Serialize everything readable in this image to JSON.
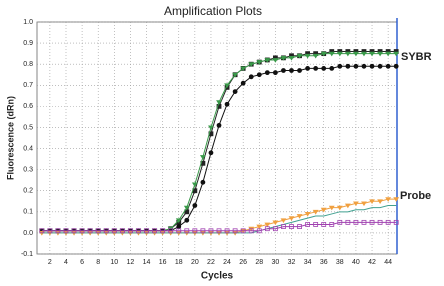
{
  "chart_data": {
    "type": "line",
    "title": "Amplification Plots",
    "x_label": "Cycles",
    "y_label": "Fluorescence (dRn)",
    "x": [
      1,
      2,
      3,
      4,
      5,
      6,
      7,
      8,
      9,
      10,
      11,
      12,
      13,
      14,
      15,
      16,
      17,
      18,
      19,
      20,
      21,
      22,
      23,
      24,
      25,
      26,
      27,
      28,
      29,
      30,
      31,
      32,
      33,
      34,
      35,
      36,
      37,
      38,
      39,
      40,
      41,
      42,
      43,
      44,
      45
    ],
    "xlim": [
      0.4,
      45.1
    ],
    "xticks": [
      2,
      4,
      6,
      8,
      10,
      12,
      14,
      16,
      18,
      20,
      22,
      24,
      26,
      28,
      30,
      32,
      34,
      36,
      38,
      40,
      42,
      44
    ],
    "ylim": [
      -0.1,
      1.0
    ],
    "yticks": [
      -0.1,
      {
        "value": 0,
        "label": "0.0"
      },
      0.1,
      0.2,
      0.3,
      0.4,
      0.5,
      0.6,
      0.7,
      0.8,
      0.9,
      {
        "value": 1,
        "label": "1.0"
      }
    ],
    "grid": true,
    "annotations": [
      "SYBR",
      "Probe"
    ],
    "series": [
      {
        "color": "#222222",
        "marker": "square",
        "values": [
          0.01,
          0.01,
          0.01,
          0.01,
          0.01,
          0.01,
          0.01,
          0.01,
          0.01,
          0.01,
          0.01,
          0.01,
          0.01,
          0.01,
          0.01,
          0.01,
          0.02,
          0.05,
          0.1,
          0.2,
          0.33,
          0.47,
          0.6,
          0.69,
          0.75,
          0.78,
          0.8,
          0.81,
          0.82,
          0.83,
          0.83,
          0.84,
          0.84,
          0.85,
          0.85,
          0.85,
          0.86,
          0.86,
          0.86,
          0.86,
          0.86,
          0.86,
          0.86,
          0.86,
          0.86
        ]
      },
      {
        "color": "#3a9a4a",
        "marker": "triangle",
        "values": [
          0.01,
          0.01,
          0.01,
          0.01,
          0.01,
          0.01,
          0.01,
          0.01,
          0.01,
          0.01,
          0.01,
          0.01,
          0.01,
          0.01,
          0.01,
          0.01,
          0.02,
          0.06,
          0.12,
          0.23,
          0.36,
          0.5,
          0.62,
          0.7,
          0.75,
          0.78,
          0.8,
          0.81,
          0.82,
          0.82,
          0.83,
          0.83,
          0.84,
          0.84,
          0.84,
          0.85,
          0.85,
          0.85,
          0.85,
          0.85,
          0.85,
          0.85,
          0.85,
          0.85,
          0.85
        ]
      },
      {
        "color": "#111111",
        "marker": "circle",
        "values": [
          0.01,
          0.01,
          0.01,
          0.01,
          0.01,
          0.01,
          0.01,
          0.01,
          0.01,
          0.01,
          0.01,
          0.01,
          0.01,
          0.01,
          0.01,
          0.01,
          0.01,
          0.03,
          0.06,
          0.13,
          0.24,
          0.38,
          0.51,
          0.61,
          0.67,
          0.71,
          0.74,
          0.75,
          0.76,
          0.76,
          0.77,
          0.77,
          0.77,
          0.78,
          0.78,
          0.78,
          0.78,
          0.79,
          0.79,
          0.79,
          0.79,
          0.79,
          0.79,
          0.79,
          0.79
        ]
      },
      {
        "color": "#f0a040",
        "marker": "triangle",
        "values": [
          0,
          0,
          0,
          0,
          0,
          0,
          0,
          0,
          0,
          0,
          0,
          0,
          0,
          0,
          0,
          0,
          0,
          0,
          0,
          0,
          0,
          0,
          0,
          0,
          0,
          0.01,
          0.02,
          0.03,
          0.04,
          0.05,
          0.06,
          0.07,
          0.08,
          0.09,
          0.1,
          0.11,
          0.12,
          0.12,
          0.13,
          0.14,
          0.14,
          0.15,
          0.15,
          0.16,
          0.16
        ]
      },
      {
        "color": "#40a090",
        "marker": "none",
        "values": [
          0,
          0,
          0,
          0,
          0,
          0,
          0,
          0,
          0,
          0,
          0,
          0,
          0,
          0,
          0,
          0,
          0,
          0,
          0,
          0,
          0,
          0,
          0,
          0,
          0,
          0,
          0,
          0.01,
          0.02,
          0.03,
          0.04,
          0.05,
          0.06,
          0.07,
          0.08,
          0.08,
          0.09,
          0.1,
          0.1,
          0.11,
          0.11,
          0.12,
          0.12,
          0.13,
          0.13
        ]
      },
      {
        "color": "#a040b0",
        "marker": "square",
        "values": [
          0.01,
          0.01,
          0.01,
          0.01,
          0.01,
          0.01,
          0.01,
          0.01,
          0.01,
          0.01,
          0.01,
          0.01,
          0.01,
          0.01,
          0.01,
          0.01,
          0.01,
          0.01,
          0.01,
          0.01,
          0.01,
          0.01,
          0.01,
          0.01,
          0.01,
          0.01,
          0.01,
          0.01,
          0.02,
          0.02,
          0.03,
          0.03,
          0.03,
          0.04,
          0.04,
          0.04,
          0.04,
          0.05,
          0.05,
          0.05,
          0.05,
          0.05,
          0.05,
          0.05,
          0.05
        ]
      }
    ]
  }
}
